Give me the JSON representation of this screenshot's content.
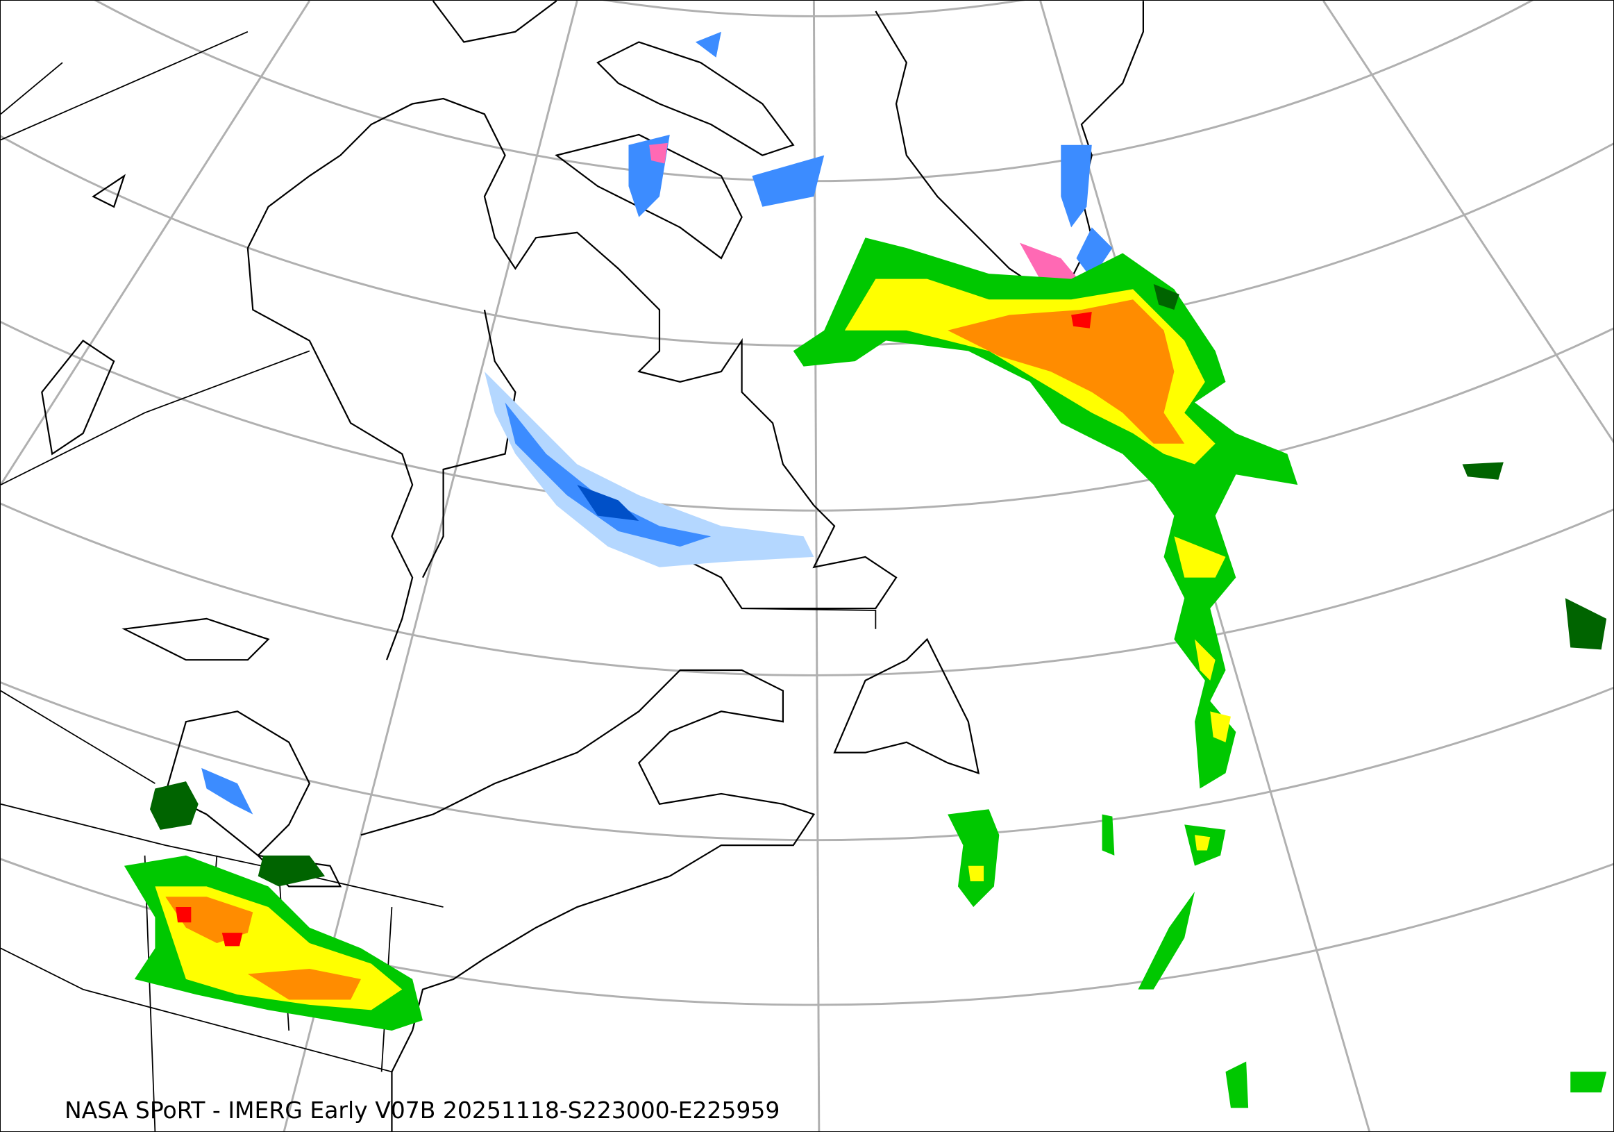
{
  "caption": "NASA SPoRT - IMERG Early V07B 20251118-S223000-E225959",
  "map": {
    "projection": "lambert-conformal",
    "product": "IMERG Early precipitation",
    "colors": {
      "graticule": "#b0b0b0",
      "coastline": "#000000",
      "rain_dark_green": "#006400",
      "rain_green": "#00c800",
      "rain_light_green": "#7cfc00",
      "rain_yellow": "#ffff00",
      "rain_orange": "#ff8c00",
      "rain_red": "#ff0000",
      "snow_light_blue": "#b4d7ff",
      "snow_blue": "#3c8cff",
      "snow_dark_blue": "#0050c8",
      "mixed_pink": "#ff69b4"
    }
  }
}
